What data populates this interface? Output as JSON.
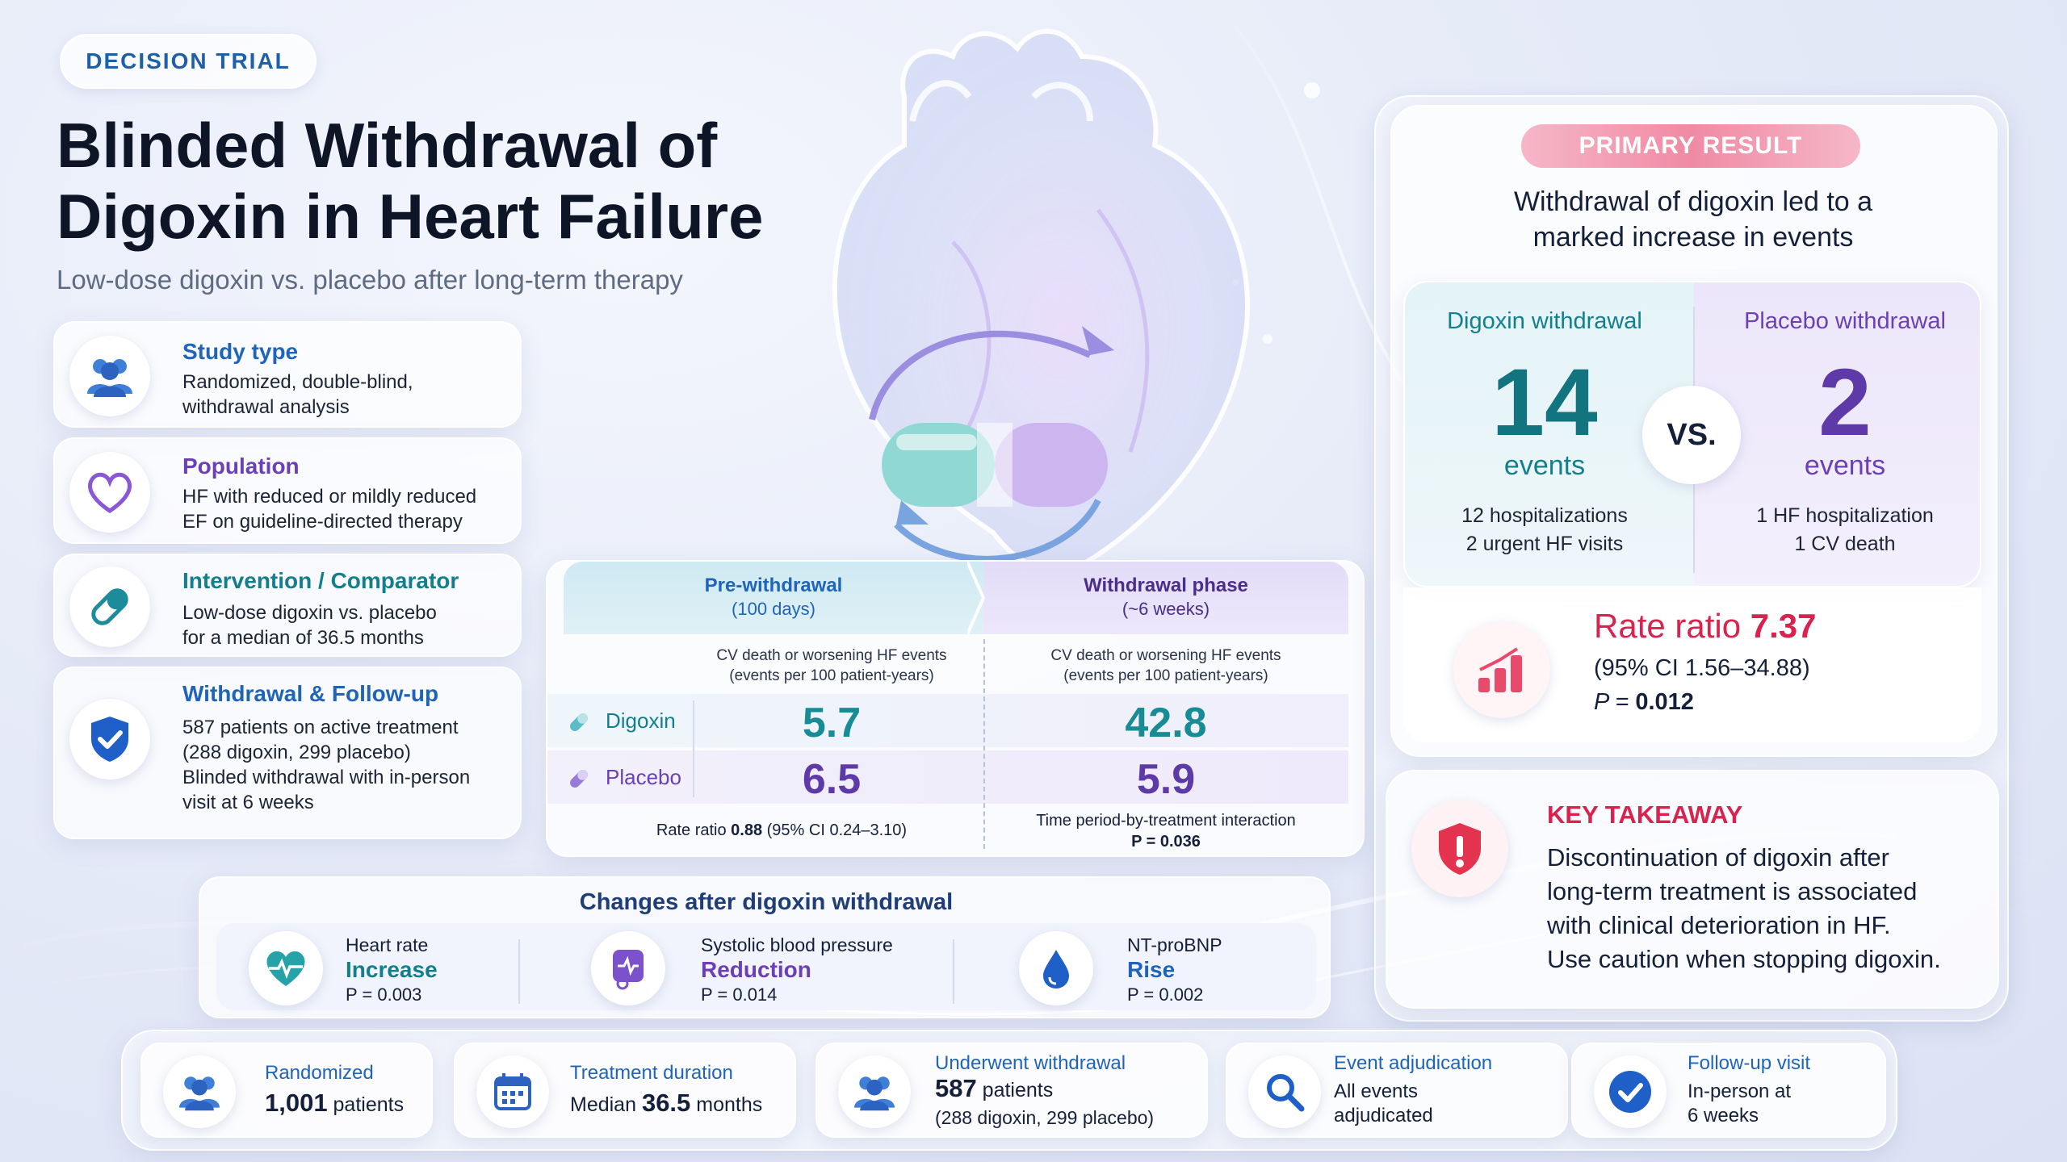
{
  "header": {
    "tag": "DECISION TRIAL",
    "title_line1": "Blinded Withdrawal of",
    "title_line2": "Digoxin in Heart Failure",
    "subtitle": "Low-dose digoxin vs. placebo after long-term therapy"
  },
  "study_cards": [
    {
      "title": "Study type",
      "line1": "Randomized, double-blind,",
      "line2": "withdrawal analysis",
      "icon": "people-icon"
    },
    {
      "title": "Population",
      "line1": "HF with reduced or mildly reduced",
      "line2": "EF on guideline-directed therapy",
      "icon": "heart-outline-icon"
    },
    {
      "title": "Intervention / Comparator",
      "line1": "Low-dose digoxin vs. placebo",
      "line2": "for a median of 36.5 months",
      "icon": "capsule-icon"
    },
    {
      "title": "Withdrawal & Follow-up",
      "line1": "587 patients on active treatment",
      "line2": "(288 digoxin, 299 placebo)",
      "line3": "Blinded withdrawal with in-person",
      "line4": "visit at 6 weeks",
      "icon": "shield-check-icon"
    }
  ],
  "table": {
    "pre_header_line1": "Pre-withdrawal",
    "pre_header_line2": "(100 days)",
    "post_header_line1": "Withdrawal phase",
    "post_header_line2": "(~6 weeks)",
    "col_desc_line1": "CV death or worsening HF events",
    "col_desc_line2": "(events per 100 patient-years)",
    "rows": [
      {
        "label": "Digoxin",
        "pre": "5.7",
        "post": "42.8"
      },
      {
        "label": "Placebo",
        "pre": "6.5",
        "post": "5.9"
      }
    ],
    "pre_footer_prefix": "Rate ratio ",
    "pre_footer_value": "0.88",
    "pre_footer_suffix": " (95% CI 0.24–3.10)",
    "post_footer_line1": "Time period-by-treatment interaction",
    "post_footer_line2": "P = 0.036"
  },
  "primary": {
    "pill": "PRIMARY RESULT",
    "headline_line1": "Withdrawal of digoxin led to a",
    "headline_line2": "marked increase in events",
    "left_title": "Digoxin withdrawal",
    "left_number": "14",
    "left_unit": "events",
    "left_detail1": "12 hospitalizations",
    "left_detail2": "2 urgent HF visits",
    "vs": "VS.",
    "right_title": "Placebo withdrawal",
    "right_number": "2",
    "right_unit": "events",
    "right_detail1": "1 HF hospitalization",
    "right_detail2": "1 CV death",
    "rate_label": "Rate ratio ",
    "rate_value": "7.37",
    "rate_ci": "(95% CI 1.56–34.88)",
    "rate_p_prefix": "P = ",
    "rate_p_value": "0.012"
  },
  "takeaway": {
    "title": "KEY TAKEAWAY",
    "line1": "Discontinuation of digoxin after",
    "line2": "long-term treatment is associated",
    "line3": "with clinical deterioration in HF.",
    "line4": "Use caution when stopping digoxin."
  },
  "changes": {
    "title": "Changes after digoxin withdrawal",
    "items": [
      {
        "name": "Heart rate",
        "direction": "Increase",
        "p": "P = 0.003",
        "icon": "heart-pulse-icon"
      },
      {
        "name": "Systolic blood pressure",
        "direction": "Reduction",
        "p": "P = 0.014",
        "icon": "blood-pressure-icon"
      },
      {
        "name": "NT-proBNP",
        "direction": "Rise",
        "p": "P = 0.002",
        "icon": "drop-icon"
      }
    ]
  },
  "bottom": [
    {
      "label": "Randomized",
      "value_bold": "1,001",
      "value_rest": " patients",
      "icon": "people-icon"
    },
    {
      "label": "Treatment duration",
      "value_prefix": "Median ",
      "value_bold": "36.5",
      "value_rest": " months",
      "icon": "calendar-icon"
    },
    {
      "label": "Underwent withdrawal",
      "value_bold": "587",
      "value_rest": " patients",
      "value_line2": "(288 digoxin, 299 placebo)",
      "icon": "people-icon"
    },
    {
      "label": "Event adjudication",
      "value_line1": "All events",
      "value_line2": "adjudicated",
      "icon": "magnifier-icon"
    },
    {
      "label": "Follow-up visit",
      "value_line1": "In-person at",
      "value_line2": "6 weeks",
      "icon": "check-circle-icon"
    }
  ],
  "colors": {
    "accent_blue": "#1f64b8",
    "accent_purple": "#6b3fb6",
    "accent_teal": "#137f8d",
    "alert_red": "#d8234f",
    "background": "#e6ebf8"
  }
}
